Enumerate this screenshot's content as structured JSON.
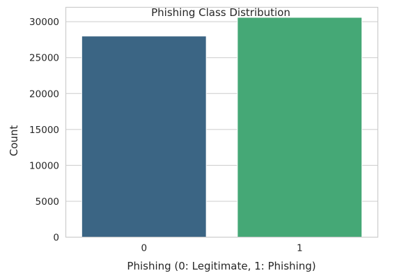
{
  "chart_data": {
    "type": "bar",
    "title": "Phishing Class Distribution",
    "xlabel": "Phishing (0: Legitimate, 1: Phishing)",
    "ylabel": "Count",
    "categories": [
      "0",
      "1"
    ],
    "values": [
      28000,
      30600
    ],
    "colors": [
      "#3b6584",
      "#45a876"
    ],
    "ylim": [
      0,
      32000
    ],
    "yticks": [
      0,
      5000,
      10000,
      15000,
      20000,
      25000,
      30000
    ],
    "grid": "horizontal"
  }
}
